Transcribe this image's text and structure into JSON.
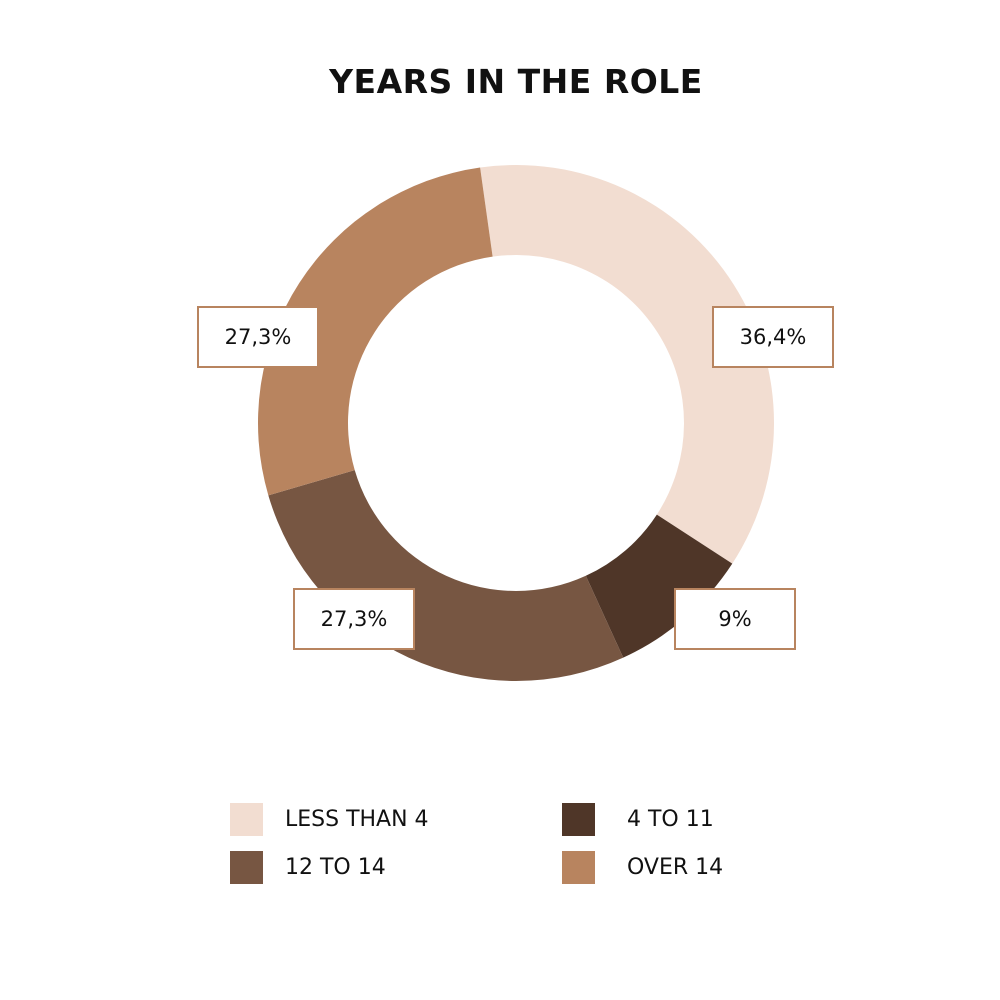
{
  "chart_data": {
    "type": "pie",
    "variant": "donut",
    "title": "YEARS IN THE ROLE",
    "categories": [
      "LESS THAN 4",
      "4 TO 11",
      "12 TO 14",
      "OVER 14"
    ],
    "values": [
      36.4,
      9,
      27.3,
      27.3
    ],
    "data_labels": [
      "36,4%",
      "9%",
      "27,3%",
      "27,3%"
    ],
    "colors": [
      "#f2ddd1",
      "#4f3628",
      "#775642",
      "#b8845f"
    ],
    "label_border_color": "#b8845f",
    "legend_position": "bottom",
    "start_angle_deg": -8
  }
}
